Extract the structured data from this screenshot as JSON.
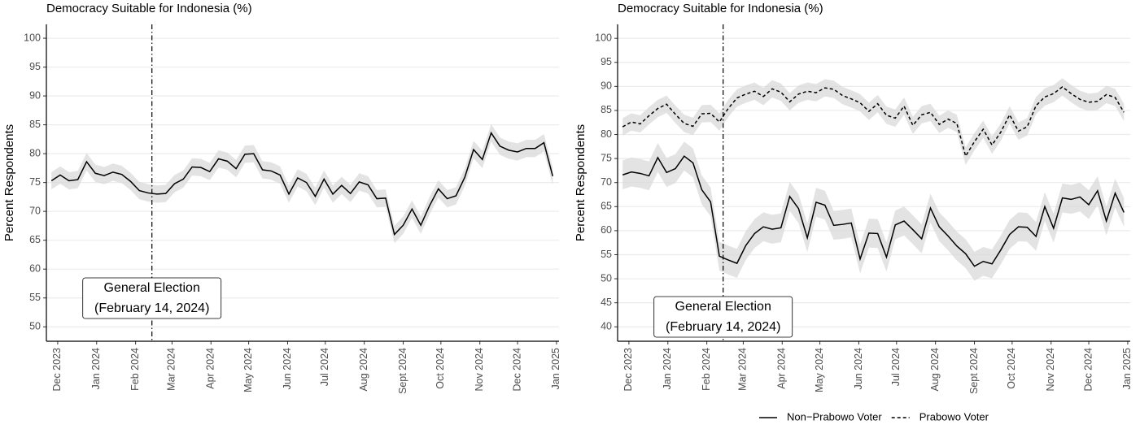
{
  "chart_data": [
    {
      "type": "line",
      "title": "Democracy Suitable for Indonesia (%)",
      "y_label": "Percent Respondents",
      "x": [
        -5,
        2,
        9,
        16,
        23,
        30,
        37,
        44,
        51,
        58,
        65,
        72,
        79,
        86,
        93,
        100,
        107,
        114,
        121,
        128,
        135,
        142,
        149,
        156,
        163,
        170,
        177,
        184,
        191,
        198,
        205,
        212,
        219,
        226,
        233,
        240,
        247,
        254,
        261,
        268,
        275,
        282,
        289,
        296,
        303,
        310,
        317,
        324,
        331,
        338,
        345,
        352,
        359,
        366,
        373,
        380,
        387,
        394
      ],
      "values": [
        75.3,
        76.3,
        75.3,
        75.5,
        78.6,
        76.6,
        76.2,
        76.8,
        76.4,
        75.2,
        73.6,
        73.2,
        73.0,
        73.1,
        74.8,
        75.6,
        77.7,
        77.6,
        76.9,
        79.1,
        78.7,
        77.4,
        79.9,
        80.0,
        77.2,
        77.0,
        76.3,
        73.0,
        75.8,
        75.0,
        72.6,
        75.6,
        73.0,
        74.5,
        73.1,
        75.1,
        74.6,
        72.2,
        72.3,
        66.0,
        67.6,
        70.4,
        67.6,
        71.0,
        73.9,
        72.2,
        72.7,
        75.9,
        80.7,
        79.0,
        83.6,
        81.3,
        80.6,
        80.3,
        80.9,
        80.9,
        81.9,
        76.1
      ],
      "color": "#000000",
      "linestyle": "solid",
      "ci": 1.5,
      "xlim": [
        -9,
        399
      ],
      "xticks": [
        {
          "value": 0,
          "label": "Dec 2023"
        },
        {
          "value": 31,
          "label": "Jan 2024"
        },
        {
          "value": 62,
          "label": "Feb 2024"
        },
        {
          "value": 91,
          "label": "Mar 2024"
        },
        {
          "value": 122,
          "label": "Apr 2024"
        },
        {
          "value": 152,
          "label": "May 2024"
        },
        {
          "value": 183,
          "label": "Jun 2024"
        },
        {
          "value": 213,
          "label": "Jul 2024"
        },
        {
          "value": 244,
          "label": "Aug 2024"
        },
        {
          "value": 275,
          "label": "Sept 2024"
        },
        {
          "value": 305,
          "label": "Oct 2024"
        },
        {
          "value": 336,
          "label": "Nov 2024"
        },
        {
          "value": 366,
          "label": "Dec 2024"
        },
        {
          "value": 397,
          "label": "Jan 2025"
        }
      ],
      "ylim": [
        47.5,
        102.4
      ],
      "yticks": [
        50,
        55,
        60,
        65,
        70,
        75,
        80,
        85,
        90,
        95,
        100
      ],
      "grid": true,
      "vline": 75,
      "annotation": [
        "General Election",
        "(February 14, 2024)"
      ]
    },
    {
      "type": "line",
      "title": "Democracy Suitable for Indonesia (%)",
      "y_label": "Percent Respondents",
      "x": [
        -5,
        2,
        9,
        16,
        23,
        30,
        37,
        44,
        51,
        58,
        65,
        72,
        79,
        86,
        93,
        100,
        107,
        114,
        121,
        128,
        135,
        142,
        149,
        156,
        163,
        170,
        177,
        184,
        191,
        198,
        205,
        212,
        219,
        226,
        233,
        240,
        247,
        254,
        261,
        268,
        275,
        282,
        289,
        296,
        303,
        310,
        317,
        324,
        331,
        338,
        345,
        352,
        359,
        366,
        373,
        380,
        387,
        394
      ],
      "series": [
        {
          "name": "Non−Prabowo Voter",
          "color": "#000000",
          "linestyle": "solid",
          "ci": 3,
          "values": [
            71.6,
            72.2,
            71.9,
            71.4,
            75.2,
            72.1,
            72.9,
            75.5,
            74.1,
            68.5,
            66.0,
            54.7,
            53.9,
            53.2,
            56.9,
            59.4,
            60.8,
            60.3,
            60.6,
            67.1,
            64.6,
            58.5,
            65.9,
            65.3,
            61.1,
            61.3,
            61.6,
            54.1,
            59.5,
            59.4,
            54.5,
            61.2,
            62.0,
            60.2,
            58.3,
            64.7,
            60.8,
            58.9,
            56.8,
            55.2,
            52.6,
            53.6,
            53.1,
            56.0,
            59.2,
            60.8,
            60.7,
            58.8,
            65.0,
            60.5,
            66.8,
            66.5,
            67.0,
            65.4,
            68.3,
            62.0,
            67.8,
            63.8
          ]
        },
        {
          "name": "Prabowo Voter",
          "color": "#000000",
          "linestyle": "dashed",
          "ci": 1.8,
          "values": [
            81.6,
            82.6,
            82.2,
            83.9,
            85.4,
            86.3,
            84.2,
            82.3,
            81.7,
            84.3,
            84.4,
            82.6,
            85.4,
            87.6,
            88.4,
            89.0,
            87.9,
            89.5,
            88.8,
            86.8,
            88.4,
            89.0,
            88.7,
            89.7,
            89.4,
            88.1,
            87.4,
            86.6,
            84.8,
            86.4,
            84.0,
            83.4,
            85.9,
            81.9,
            84.1,
            84.6,
            82.1,
            83.2,
            82.3,
            75.5,
            78.5,
            81.1,
            77.8,
            80.5,
            84.1,
            80.7,
            81.6,
            86.0,
            87.8,
            88.5,
            89.9,
            88.5,
            87.3,
            86.7,
            86.9,
            88.3,
            87.7,
            84.6
          ]
        }
      ],
      "xlim": [
        -9,
        399
      ],
      "xticks": [
        {
          "value": 0,
          "label": "Dec 2023"
        },
        {
          "value": 31,
          "label": "Jan 2024"
        },
        {
          "value": 62,
          "label": "Feb 2024"
        },
        {
          "value": 91,
          "label": "Mar 2024"
        },
        {
          "value": 122,
          "label": "Apr 2024"
        },
        {
          "value": 152,
          "label": "May 2024"
        },
        {
          "value": 183,
          "label": "Jun 2024"
        },
        {
          "value": 213,
          "label": "Jul 2024"
        },
        {
          "value": 244,
          "label": "Aug 2024"
        },
        {
          "value": 275,
          "label": "Sept 2024"
        },
        {
          "value": 305,
          "label": "Oct 2024"
        },
        {
          "value": 336,
          "label": "Nov 2024"
        },
        {
          "value": 366,
          "label": "Dec 2024"
        },
        {
          "value": 397,
          "label": "Jan 2025"
        }
      ],
      "ylim": [
        37,
        102.9
      ],
      "yticks": [
        40,
        45,
        50,
        55,
        60,
        65,
        70,
        75,
        80,
        85,
        90,
        95,
        100
      ],
      "grid": true,
      "vline": 75,
      "annotation": [
        "General Election",
        "(February 14, 2024)"
      ],
      "legend": "bottom"
    }
  ]
}
